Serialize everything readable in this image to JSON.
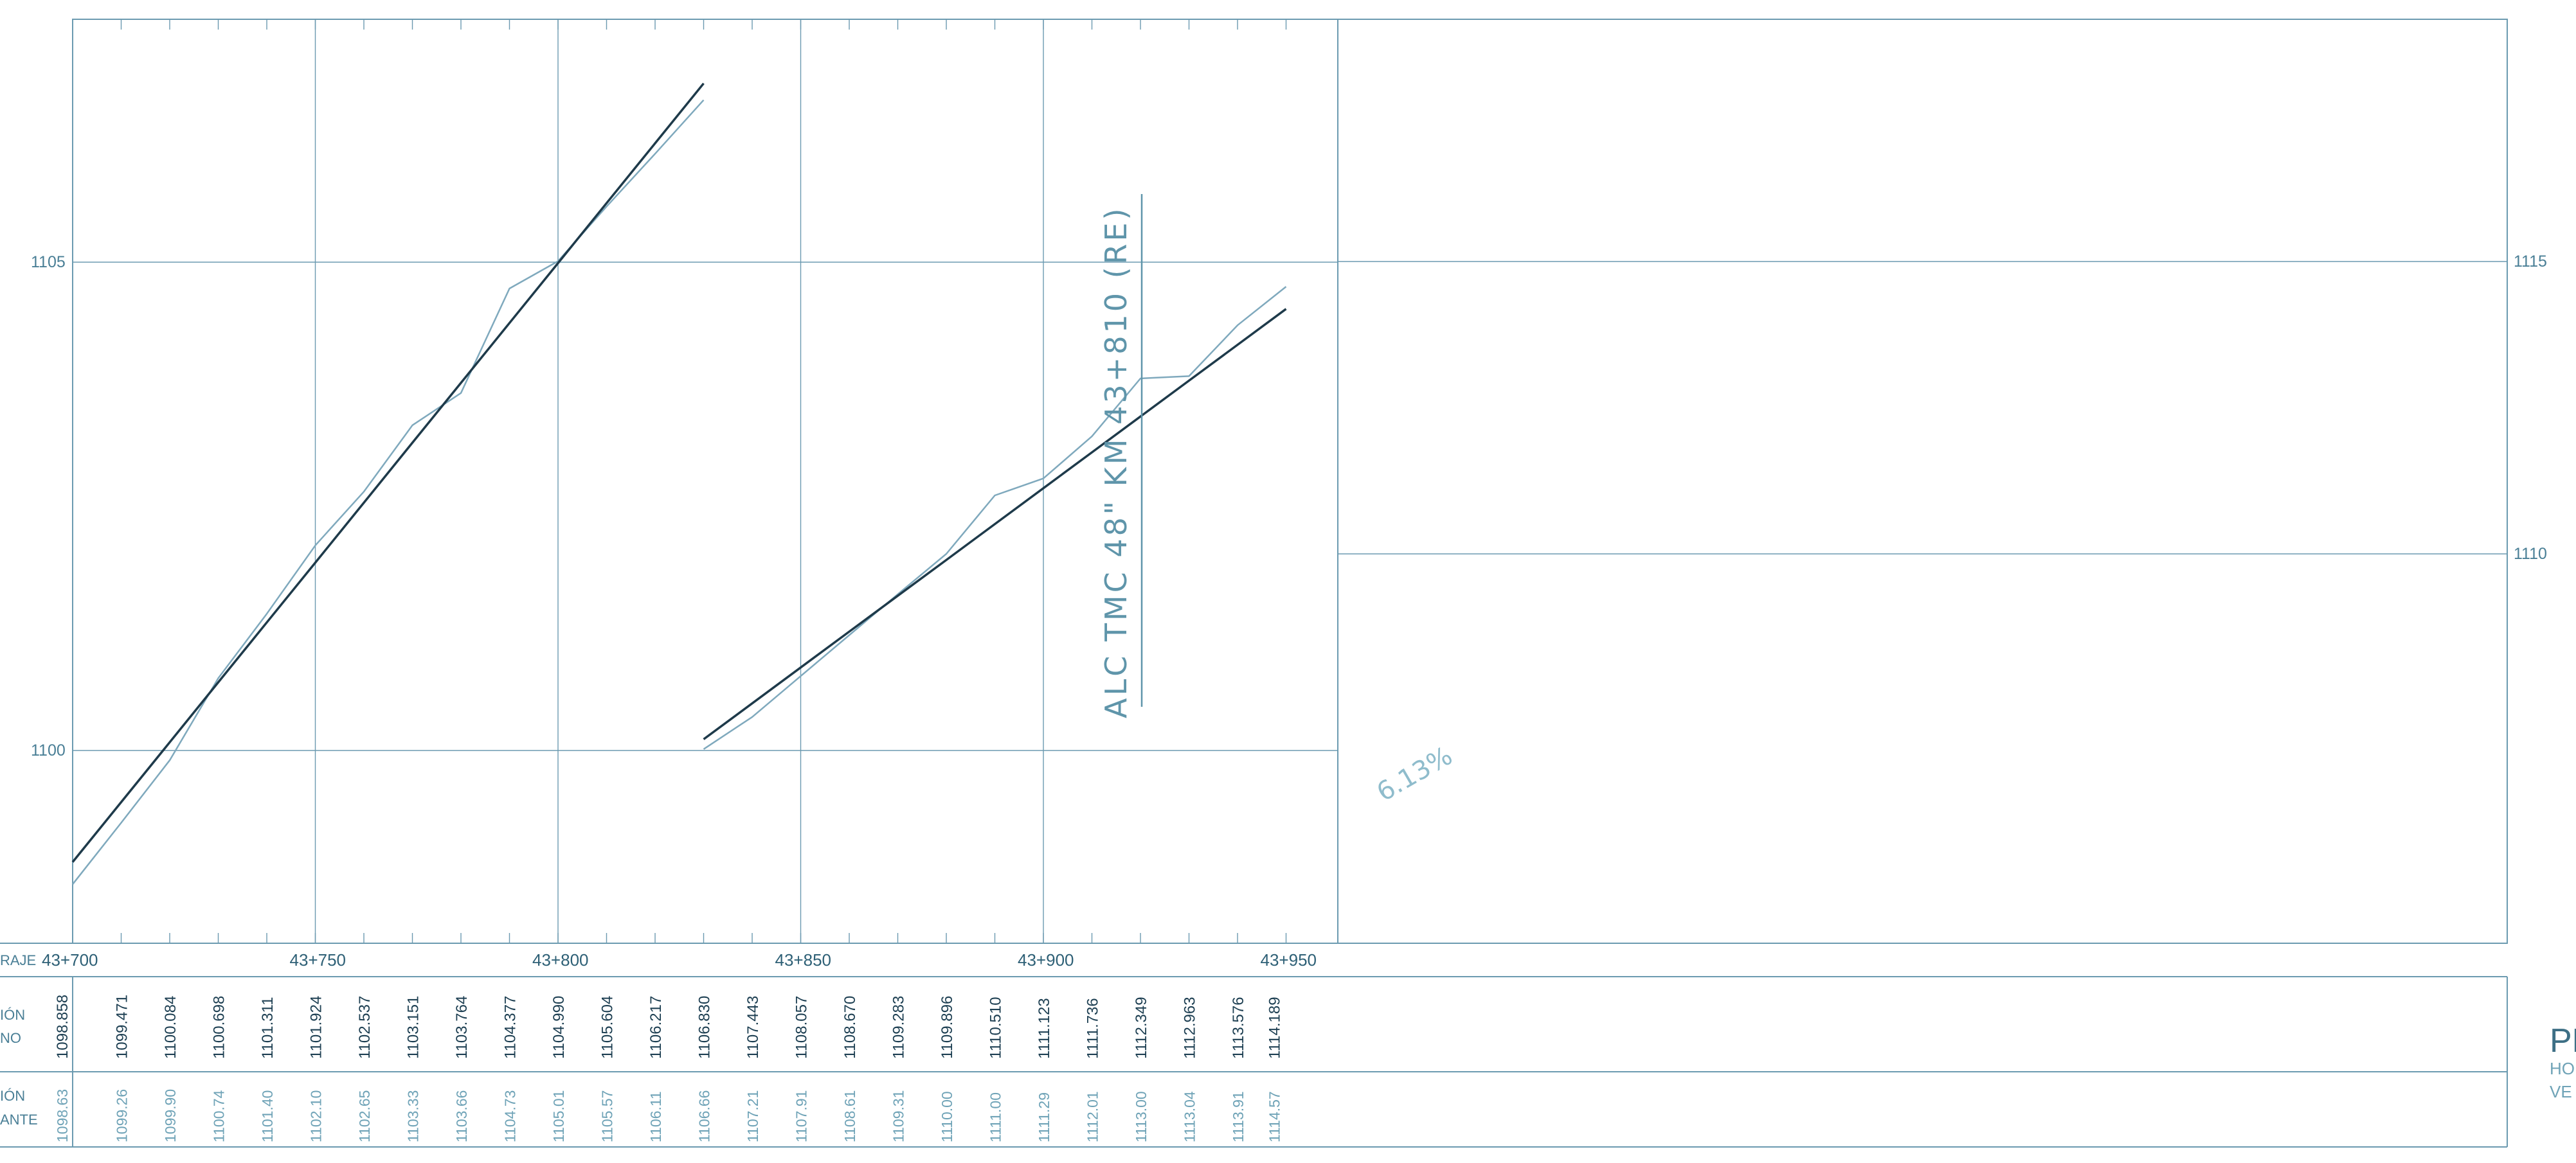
{
  "elevation_labels": [
    {
      "value": "1105",
      "axis": "left",
      "elev": 1105
    },
    {
      "value": "1100",
      "axis": "left",
      "elev": 1100
    },
    {
      "value": "1115",
      "axis": "right",
      "elev": 1115
    },
    {
      "value": "1110",
      "axis": "right",
      "elev": 1110
    }
  ],
  "chainage_labels": [
    {
      "text": "43+700",
      "km": 43700
    },
    {
      "text": "43+750",
      "km": 43750
    },
    {
      "text": "43+800",
      "km": 43800
    },
    {
      "text": "43+850",
      "km": 43850
    },
    {
      "text": "43+900",
      "km": 43900
    },
    {
      "text": "43+950",
      "km": 43950
    }
  ],
  "row_labels": {
    "kilometraje": "RAJE",
    "terreno_1": "IÓN",
    "terreno_2": "NO",
    "subrasante_1": "IÓN",
    "subrasante_2": "ANTE"
  },
  "annotation": "ALC TMC 48\" KM 43+810 (RE)",
  "annotation_km": 43810,
  "grade_label": "6.13%",
  "side_title": {
    "big": "PE",
    "line1": "HO",
    "line2": "VE"
  },
  "colors": {
    "grid": "#6b9ab0",
    "grade_line": "#1e3a4a",
    "terrain_line": "#7fa9bd"
  },
  "chart_data": {
    "type": "line",
    "panels": [
      {
        "km_range": [
          43700,
          43830
        ],
        "elev_range": [
          1098.1,
          1107.8
        ]
      },
      {
        "km_range": [
          43830,
          43950
        ],
        "elev_range": [
          1104.6,
          1114.2
        ]
      }
    ],
    "stations": [
      43700,
      43710,
      43720,
      43730,
      43740,
      43750,
      43760,
      43770,
      43780,
      43790,
      43800,
      43810,
      43820,
      43830,
      43840,
      43850,
      43860,
      43870,
      43880,
      43890,
      43900,
      43910,
      43920,
      43930,
      43940,
      43950
    ],
    "series": [
      {
        "values": [
          1098.858,
          1099.471,
          1100.084,
          1100.698,
          1101.311,
          1101.924,
          1102.537,
          1103.151,
          1103.764,
          1104.377,
          1104.99,
          1105.604,
          1106.217,
          1106.83,
          1107.443,
          1108.057,
          1108.67,
          1109.283,
          1109.896,
          1110.51,
          1111.123,
          1111.736,
          1112.349,
          1112.963,
          1113.576,
          1114.189
        ],
        "labels": [
          "1098.858",
          "1099.471",
          "1100.084",
          "1100.698",
          "1101.311",
          "1101.924",
          "1102.537",
          "1103.151",
          "1103.764",
          "1104.377",
          "1104.990",
          "1105.604",
          "1106.217",
          "1106.830",
          "1107.443",
          "1108.057",
          "1108.670",
          "1109.283",
          "1109.896",
          "1110.510",
          "1111.123",
          "1111.736",
          "1112.349",
          "1112.963",
          "1113.576",
          "1114.189"
        ]
      },
      {
        "values": [
          1098.63,
          1099.26,
          1099.9,
          1100.74,
          1101.4,
          1102.1,
          1102.65,
          1103.33,
          1103.66,
          1104.73,
          1105.01,
          1105.57,
          1106.11,
          1106.66,
          1107.21,
          1107.91,
          1108.61,
          1109.31,
          1110.0,
          1111.0,
          1111.29,
          1112.01,
          1113.0,
          1113.04,
          1113.91,
          1114.57
        ],
        "labels": [
          "1098.63",
          "1099.26",
          "1099.90",
          "1100.74",
          "1101.40",
          "1102.10",
          "1102.65",
          "1103.33",
          "1103.66",
          "1104.73",
          "1105.01",
          "1105.57",
          "1106.11",
          "1106.66",
          "1107.21",
          "1107.91",
          "1108.61",
          "1109.31",
          "1110.00",
          "1111.00",
          "1111.29",
          "1112.01",
          "1113.00",
          "1113.04",
          "1113.91",
          "1114.57"
        ]
      }
    ]
  }
}
